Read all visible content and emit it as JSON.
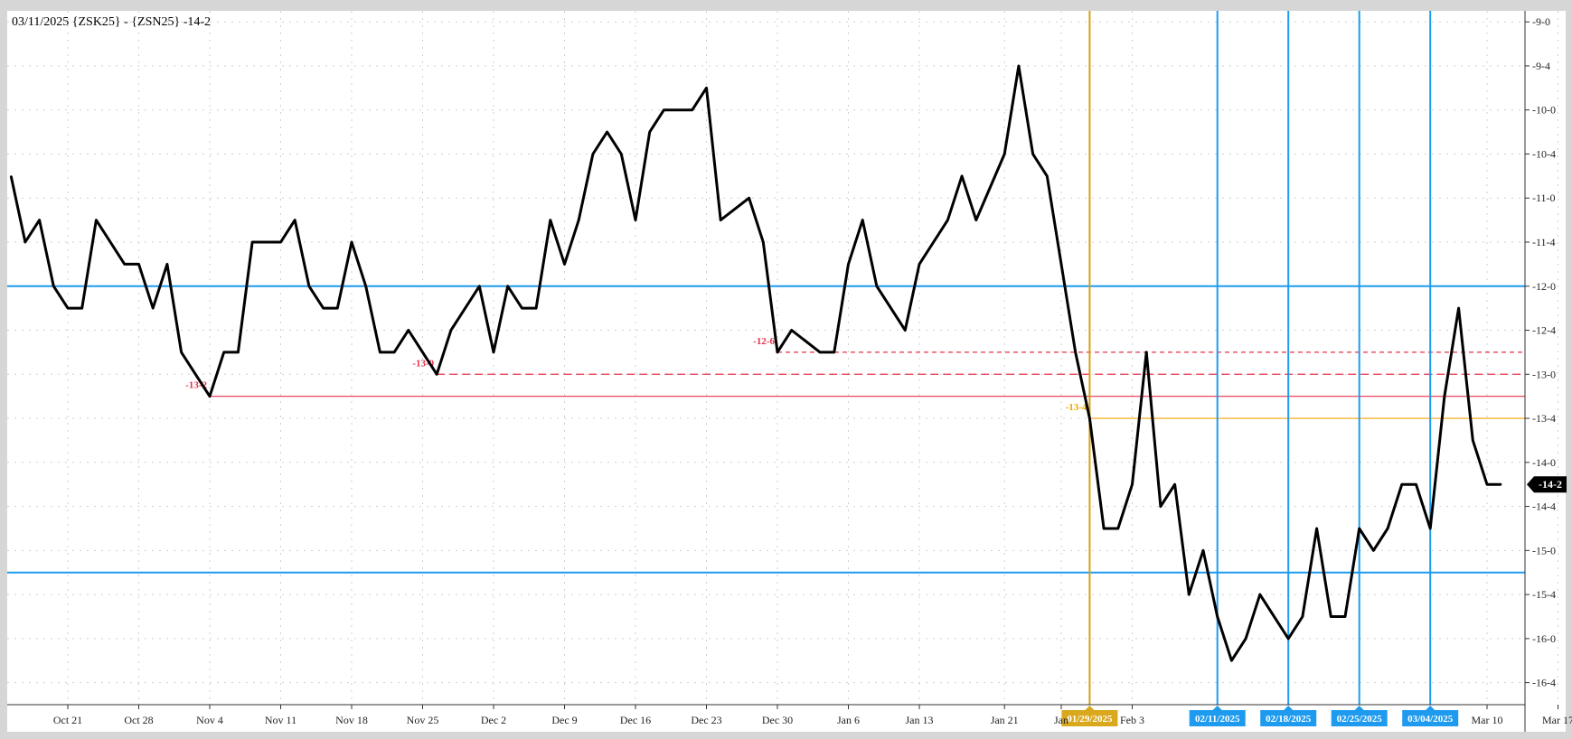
{
  "chart_data": {
    "type": "line",
    "title": "03/11/2025 {ZSK25} - {ZSN25} -14-2",
    "xlabel": "",
    "ylabel": "",
    "y_unit": "cents (quarter-cent fractions)",
    "ylim": [
      -16.75,
      -8.875
    ],
    "y_tick_labels": [
      "-9-0",
      "-9-4",
      "-10-0",
      "-10-4",
      "-11-0",
      "-11-4",
      "-12-0",
      "-12-4",
      "-13-0",
      "-13-4",
      "-14-0",
      "-14-4",
      "-15-0",
      "-15-4",
      "-16-0",
      "-16-4"
    ],
    "y_tick_values": [
      -9.0,
      -9.5,
      -10.0,
      -10.5,
      -11.0,
      -11.5,
      -12.0,
      -12.5,
      -13.0,
      -13.5,
      -14.0,
      -14.5,
      -15.0,
      -15.5,
      -16.0,
      -16.5
    ],
    "x_tick_labels": [
      "Oct 21",
      "Oct 28",
      "Nov 4",
      "Nov 11",
      "Nov 18",
      "Nov 25",
      "Dec 2",
      "Dec 9",
      "Dec 16",
      "Dec 23",
      "Dec 30",
      "Jan 6",
      "Jan 13",
      "Jan 21",
      "Jan",
      "Feb 3",
      "Mar 10",
      "Mar 17"
    ],
    "x_tick_dates": [
      "2024-10-21",
      "2024-10-28",
      "2024-11-04",
      "2024-11-11",
      "2024-11-18",
      "2024-11-25",
      "2024-12-02",
      "2024-12-09",
      "2024-12-16",
      "2024-12-23",
      "2024-12-30",
      "2025-01-06",
      "2025-01-13",
      "2025-01-21",
      "2025-01-27",
      "2025-02-03",
      "2025-03-10",
      "2025-03-17"
    ],
    "grid": true,
    "last_value_label": "-14-2",
    "last_value": -14.25,
    "series": [
      {
        "color": "#000000",
        "points": [
          [
            "2024-10-15",
            -10.75
          ],
          [
            "2024-10-16",
            -11.5
          ],
          [
            "2024-10-17",
            -11.25
          ],
          [
            "2024-10-18",
            -12.0
          ],
          [
            "2024-10-21",
            -12.25
          ],
          [
            "2024-10-22",
            -12.25
          ],
          [
            "2024-10-23",
            -11.25
          ],
          [
            "2024-10-24",
            -11.5
          ],
          [
            "2024-10-25",
            -11.75
          ],
          [
            "2024-10-28",
            -11.75
          ],
          [
            "2024-10-29",
            -12.25
          ],
          [
            "2024-10-30",
            -11.75
          ],
          [
            "2024-10-31",
            -12.75
          ],
          [
            "2024-11-01",
            -13.0
          ],
          [
            "2024-11-04",
            -13.25
          ],
          [
            "2024-11-05",
            -12.75
          ],
          [
            "2024-11-06",
            -12.75
          ],
          [
            "2024-11-07",
            -11.5
          ],
          [
            "2024-11-08",
            -11.5
          ],
          [
            "2024-11-11",
            -11.5
          ],
          [
            "2024-11-12",
            -11.25
          ],
          [
            "2024-11-13",
            -12.0
          ],
          [
            "2024-11-14",
            -12.25
          ],
          [
            "2024-11-15",
            -12.25
          ],
          [
            "2024-11-18",
            -11.5
          ],
          [
            "2024-11-19",
            -12.0
          ],
          [
            "2024-11-20",
            -12.75
          ],
          [
            "2024-11-21",
            -12.75
          ],
          [
            "2024-11-22",
            -12.5
          ],
          [
            "2024-11-25",
            -12.75
          ],
          [
            "2024-11-26",
            -13.0
          ],
          [
            "2024-11-27",
            -12.5
          ],
          [
            "2024-11-29",
            -12.0
          ],
          [
            "2024-12-02",
            -12.75
          ],
          [
            "2024-12-03",
            -12.0
          ],
          [
            "2024-12-04",
            -12.25
          ],
          [
            "2024-12-05",
            -12.25
          ],
          [
            "2024-12-06",
            -11.25
          ],
          [
            "2024-12-09",
            -11.75
          ],
          [
            "2024-12-10",
            -11.25
          ],
          [
            "2024-12-11",
            -10.5
          ],
          [
            "2024-12-12",
            -10.25
          ],
          [
            "2024-12-13",
            -10.5
          ],
          [
            "2024-12-16",
            -11.25
          ],
          [
            "2024-12-17",
            -10.25
          ],
          [
            "2024-12-18",
            -10.0
          ],
          [
            "2024-12-19",
            -10.0
          ],
          [
            "2024-12-20",
            -10.0
          ],
          [
            "2024-12-23",
            -9.75
          ],
          [
            "2024-12-24",
            -11.25
          ],
          [
            "2024-12-26",
            -11.0
          ],
          [
            "2024-12-27",
            -11.5
          ],
          [
            "2024-12-30",
            -12.75
          ],
          [
            "2024-12-31",
            -12.5
          ],
          [
            "2025-01-02",
            -12.75
          ],
          [
            "2025-01-03",
            -12.75
          ],
          [
            "2025-01-06",
            -11.75
          ],
          [
            "2025-01-07",
            -11.25
          ],
          [
            "2025-01-08",
            -12.0
          ],
          [
            "2025-01-10",
            -12.5
          ],
          [
            "2025-01-13",
            -11.75
          ],
          [
            "2025-01-14",
            -11.5
          ],
          [
            "2025-01-15",
            -11.25
          ],
          [
            "2025-01-16",
            -10.75
          ],
          [
            "2025-01-17",
            -11.25
          ],
          [
            "2025-01-21",
            -10.5
          ],
          [
            "2025-01-22",
            -9.5
          ],
          [
            "2025-01-23",
            -10.5
          ],
          [
            "2025-01-24",
            -10.75
          ],
          [
            "2025-01-27",
            -11.75
          ],
          [
            "2025-01-28",
            -12.75
          ],
          [
            "2025-01-29",
            -13.5
          ],
          [
            "2025-01-30",
            -14.75
          ],
          [
            "2025-01-31",
            -14.75
          ],
          [
            "2025-02-03",
            -14.25
          ],
          [
            "2025-02-04",
            -12.75
          ],
          [
            "2025-02-05",
            -14.5
          ],
          [
            "2025-02-06",
            -14.25
          ],
          [
            "2025-02-07",
            -15.5
          ],
          [
            "2025-02-10",
            -15.0
          ],
          [
            "2025-02-11",
            -15.75
          ],
          [
            "2025-02-12",
            -16.25
          ],
          [
            "2025-02-13",
            -16.0
          ],
          [
            "2025-02-14",
            -15.5
          ],
          [
            "2025-02-18",
            -16.0
          ],
          [
            "2025-02-19",
            -15.75
          ],
          [
            "2025-02-20",
            -14.75
          ],
          [
            "2025-02-21",
            -15.75
          ],
          [
            "2025-02-24",
            -15.75
          ],
          [
            "2025-02-25",
            -14.75
          ],
          [
            "2025-02-26",
            -15.0
          ],
          [
            "2025-02-27",
            -14.75
          ],
          [
            "2025-02-28",
            -14.25
          ],
          [
            "2025-03-03",
            -14.25
          ],
          [
            "2025-03-04",
            -14.75
          ],
          [
            "2025-03-05",
            -13.25
          ],
          [
            "2025-03-06",
            -12.25
          ],
          [
            "2025-03-07",
            -13.75
          ],
          [
            "2025-03-10",
            -14.25
          ],
          [
            "2025-03-11",
            -14.25
          ]
        ]
      }
    ],
    "horizontal_lines": [
      {
        "value": -12.0,
        "color": "#1e9bef",
        "style": "solid"
      },
      {
        "value": -15.25,
        "color": "#1e9bef",
        "style": "solid"
      },
      {
        "value": -12.75,
        "from": "2024-12-30",
        "color": "#e6324b",
        "style": "dashed-short",
        "label": "-12-6"
      },
      {
        "value": -13.0,
        "from": "2024-11-26",
        "color": "#e6324b",
        "style": "dashed",
        "label": "-13-0"
      },
      {
        "value": -13.25,
        "from": "2024-11-04",
        "color": "#e6324b",
        "style": "solid",
        "label": "-13-2"
      },
      {
        "value": -13.5,
        "from": "2025-01-29",
        "color": "#f0a500",
        "style": "solid",
        "label": "-13-4"
      }
    ],
    "vertical_lines": [
      {
        "date": "2025-01-29",
        "label": "01/29/2025",
        "color": "#d4a017",
        "label_bg": "#d9a81c"
      },
      {
        "date": "2025-02-11",
        "label": "02/11/2025",
        "color": "#1e9bef",
        "label_bg": "#1e9bef"
      },
      {
        "date": "2025-02-18",
        "label": "02/18/2025",
        "color": "#1e9bef",
        "label_bg": "#1e9bef"
      },
      {
        "date": "2025-02-25",
        "label": "02/25/2025",
        "color": "#1e9bef",
        "label_bg": "#1e9bef"
      },
      {
        "date": "2025-03-04",
        "label": "03/04/2025",
        "color": "#1e9bef",
        "label_bg": "#1e9bef"
      }
    ]
  }
}
